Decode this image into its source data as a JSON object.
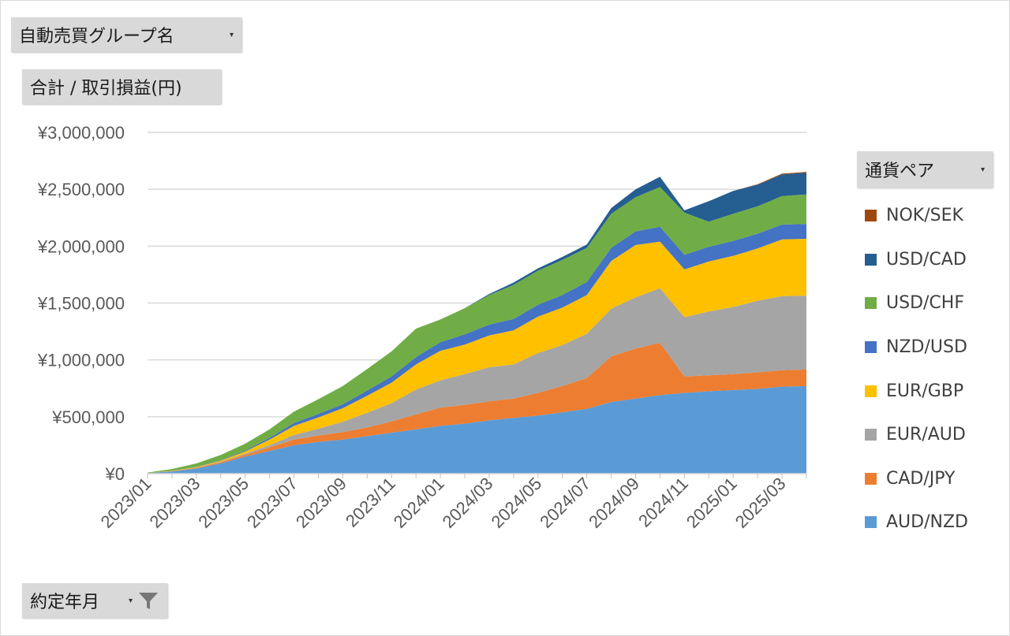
{
  "filters": {
    "group_label": "自動売買グループ名",
    "sum_label": "合計 / 取引損益(円)",
    "date_label": "約定年月",
    "pair_label": "通貨ペア"
  },
  "chart_data": {
    "type": "area",
    "stacked": true,
    "title": "",
    "xlabel": "",
    "ylabel": "",
    "ylim": [
      0,
      3000000
    ],
    "yticks": [
      0,
      500000,
      1000000,
      1500000,
      2000000,
      2500000,
      3000000
    ],
    "ytick_labels": [
      "¥0",
      "¥500,000",
      "¥1,000,000",
      "¥1,500,000",
      "¥2,000,000",
      "¥2,500,000",
      "¥3,000,000"
    ],
    "grid": true,
    "legend_position": "right",
    "categories": [
      "2023/01",
      "2023/02",
      "2023/03",
      "2023/04",
      "2023/05",
      "2023/06",
      "2023/07",
      "2023/08",
      "2023/09",
      "2023/10",
      "2023/11",
      "2023/12",
      "2024/01",
      "2024/02",
      "2024/03",
      "2024/04",
      "2024/05",
      "2024/06",
      "2024/07",
      "2024/08",
      "2024/09",
      "2024/10",
      "2024/11",
      "2024/12",
      "2025/01",
      "2025/02",
      "2025/03",
      "2025/04"
    ],
    "xtick_labels": [
      "2023/01",
      "2023/03",
      "2023/05",
      "2023/07",
      "2023/09",
      "2023/11",
      "2024/01",
      "2024/03",
      "2024/05",
      "2024/07",
      "2024/09",
      "2024/11",
      "2025/01",
      "2025/03"
    ],
    "series": [
      {
        "name": "AUD/NZD",
        "color": "#5b9bd5",
        "values": [
          5000,
          20000,
          45000,
          90000,
          150000,
          200000,
          250000,
          280000,
          300000,
          330000,
          360000,
          390000,
          420000,
          440000,
          470000,
          490000,
          510000,
          540000,
          570000,
          630000,
          660000,
          690000,
          710000,
          725000,
          735000,
          745000,
          765000,
          770000
        ]
      },
      {
        "name": "CAD/JPY",
        "color": "#ed7d31",
        "values": [
          0,
          2000,
          5000,
          10000,
          15000,
          30000,
          50000,
          55000,
          65000,
          75000,
          100000,
          130000,
          160000,
          165000,
          165000,
          170000,
          200000,
          230000,
          270000,
          400000,
          440000,
          460000,
          145000,
          140000,
          140000,
          145000,
          145000,
          145000
        ]
      },
      {
        "name": "EUR/AUD",
        "color": "#a5a5a5",
        "values": [
          0,
          1000,
          3000,
          5000,
          10000,
          20000,
          40000,
          60000,
          90000,
          130000,
          160000,
          220000,
          240000,
          270000,
          300000,
          300000,
          350000,
          360000,
          390000,
          420000,
          450000,
          480000,
          520000,
          560000,
          590000,
          630000,
          650000,
          650000
        ]
      },
      {
        "name": "EUR/GBP",
        "color": "#ffc000",
        "values": [
          0,
          2000,
          5000,
          10000,
          20000,
          50000,
          80000,
          100000,
          120000,
          150000,
          180000,
          220000,
          260000,
          260000,
          280000,
          300000,
          320000,
          330000,
          340000,
          420000,
          460000,
          410000,
          420000,
          440000,
          450000,
          460000,
          500000,
          500000
        ]
      },
      {
        "name": "NZD/USD",
        "color": "#4472c4",
        "values": [
          0,
          1000,
          2000,
          4000,
          8000,
          15000,
          25000,
          30000,
          35000,
          45000,
          55000,
          65000,
          75000,
          90000,
          95000,
          100000,
          105000,
          110000,
          115000,
          115000,
          120000,
          130000,
          130000,
          130000,
          130000,
          130000,
          130000,
          130000
        ]
      },
      {
        "name": "USD/CHF",
        "color": "#70ad47",
        "values": [
          5000,
          15000,
          30000,
          45000,
          60000,
          75000,
          100000,
          130000,
          160000,
          190000,
          220000,
          250000,
          200000,
          230000,
          260000,
          300000,
          300000,
          310000,
          300000,
          300000,
          300000,
          350000,
          370000,
          220000,
          240000,
          240000,
          250000,
          260000
        ]
      },
      {
        "name": "USD/CAD",
        "color": "#255e91",
        "values": [
          0,
          0,
          0,
          0,
          0,
          0,
          0,
          0,
          0,
          0,
          0,
          0,
          0,
          0,
          10000,
          20000,
          20000,
          25000,
          30000,
          50000,
          70000,
          90000,
          20000,
          180000,
          200000,
          190000,
          190000,
          190000
        ]
      },
      {
        "name": "NOK/SEK",
        "color": "#9e480e",
        "values": [
          0,
          0,
          0,
          0,
          0,
          0,
          0,
          0,
          0,
          0,
          0,
          0,
          0,
          0,
          0,
          0,
          0,
          0,
          0,
          0,
          0,
          0,
          0,
          0,
          0,
          5000,
          8000,
          8000
        ]
      }
    ]
  },
  "legend_order": [
    "NOK/SEK",
    "USD/CAD",
    "USD/CHF",
    "NZD/USD",
    "EUR/GBP",
    "EUR/AUD",
    "CAD/JPY",
    "AUD/NZD"
  ]
}
